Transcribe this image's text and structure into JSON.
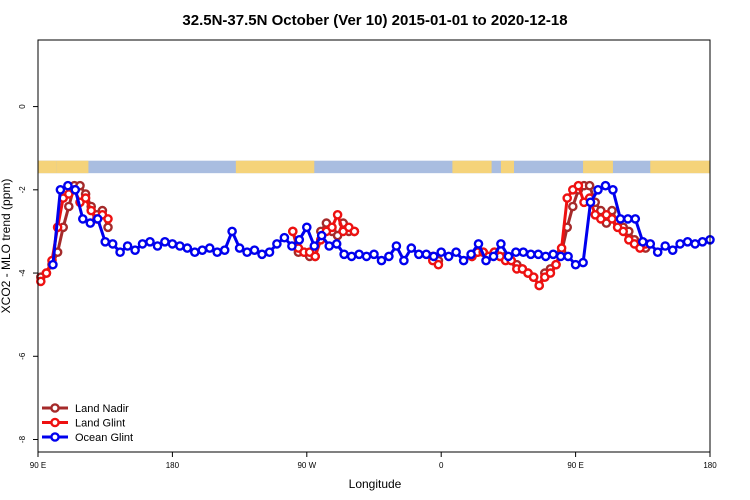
{
  "chart_data": {
    "type": "line",
    "title": "32.5N-37.5N October (Ver 10)   2015-01-01 to 2020-12-18",
    "xlabel": "Longitude",
    "ylabel": "XCO2 - MLO trend (ppm)",
    "xlim": [
      90,
      450
    ],
    "ylim": [
      -8.3,
      1.6
    ],
    "x_ticks": [
      {
        "value": 90,
        "label": "90 E"
      },
      {
        "value": 162,
        "label": "180"
      },
      {
        "value": 234,
        "label": "90 W"
      },
      {
        "value": 306,
        "label": "0"
      },
      {
        "value": 378,
        "label": "90 E"
      },
      {
        "value": 450,
        "label": "180"
      }
    ],
    "y_ticks": [
      {
        "value": 0,
        "label": "0"
      },
      {
        "value": -2,
        "label": "-2"
      },
      {
        "value": -4,
        "label": "-4"
      },
      {
        "value": -6,
        "label": "-6"
      },
      {
        "value": -8,
        "label": "-8"
      }
    ],
    "grid": false,
    "legend_position": "bottom-left",
    "landmask_band": {
      "y_top": -1.3,
      "y_bottom": -1.6,
      "land_color": "#f5d37a",
      "ocean_color": "#a9bde0"
    },
    "series": [
      {
        "name": "Land Nadir",
        "color": "#a52a2a",
        "x": [
          91.5,
          94.5,
          97.5,
          100.5,
          103.5,
          106.5,
          109.5,
          112.5,
          115.5,
          118.5,
          121.5,
          124.5,
          127.5,
          226.5,
          229.5,
          232.5,
          235.5,
          238.5,
          241.5,
          244.5,
          247.5,
          250.5,
          253.5,
          256.5,
          259.5,
          301.5,
          304.5,
          322.5,
          325.5,
          328.5,
          331.5,
          334.5,
          337.5,
          340.5,
          343.5,
          346.5,
          349.5,
          352.5,
          355.5,
          358.5,
          361.5,
          364.5,
          367.5,
          370.5,
          373.5,
          376.5,
          379.5,
          382.5,
          385.5,
          388.5,
          391.5,
          394.5,
          397.5,
          400.5,
          403.5,
          406.5,
          409.5,
          412.5,
          415.5
        ],
        "y": [
          -4.1,
          -4.0,
          -3.8,
          -3.5,
          -2.9,
          -2.4,
          -1.9,
          -1.9,
          -2.1,
          -2.4,
          -2.6,
          -2.5,
          -2.9,
          -3.0,
          -3.5,
          -3.5,
          -3.6,
          -3.6,
          -3.0,
          -2.8,
          -3.0,
          -3.1,
          -2.8,
          -3.0,
          -3.0,
          -3.6,
          -3.7,
          -3.6,
          -3.5,
          -3.5,
          -3.6,
          -3.5,
          -3.6,
          -3.6,
          -3.7,
          -3.8,
          -3.9,
          -4.0,
          -4.1,
          -4.3,
          -4.0,
          -3.9,
          -3.8,
          -3.5,
          -2.9,
          -2.4,
          -2.0,
          -1.9,
          -1.9,
          -2.3,
          -2.5,
          -2.8,
          -2.5,
          -2.8,
          -2.9,
          -3.0,
          -3.2,
          -3.3,
          -3.4
        ]
      },
      {
        "name": "Land Glint",
        "color": "#ee1111",
        "x": [
          91.5,
          94.5,
          97.5,
          100.5,
          103.5,
          106.5,
          109.5,
          112.5,
          115.5,
          118.5,
          121.5,
          124.5,
          127.5,
          226.5,
          229.5,
          232.5,
          235.5,
          238.5,
          241.5,
          244.5,
          247.5,
          250.5,
          253.5,
          256.5,
          259.5,
          301.5,
          304.5,
          322.5,
          325.5,
          328.5,
          331.5,
          334.5,
          337.5,
          340.5,
          343.5,
          346.5,
          349.5,
          352.5,
          355.5,
          358.5,
          361.5,
          364.5,
          367.5,
          370.5,
          373.5,
          376.5,
          379.5,
          382.5,
          385.5,
          388.5,
          391.5,
          394.5,
          397.5,
          400.5,
          403.5,
          406.5,
          409.5,
          412.5,
          415.5
        ],
        "y": [
          -4.2,
          -4.0,
          -3.7,
          -2.9,
          -2.2,
          -2.1,
          -2.0,
          -2.3,
          -2.2,
          -2.5,
          -2.7,
          -2.6,
          -2.7,
          -3.0,
          -3.4,
          -3.5,
          -3.5,
          -3.6,
          -3.2,
          -3.0,
          -2.9,
          -2.6,
          -3.0,
          -2.9,
          -3.0,
          -3.7,
          -3.8,
          -3.6,
          -3.5,
          -3.5,
          -3.6,
          -3.5,
          -3.6,
          -3.7,
          -3.7,
          -3.9,
          -3.9,
          -4.0,
          -4.1,
          -4.3,
          -4.1,
          -4.0,
          -3.8,
          -3.4,
          -2.2,
          -2.0,
          -1.9,
          -2.3,
          -2.2,
          -2.6,
          -2.7,
          -2.6,
          -2.7,
          -2.9,
          -3.0,
          -3.2,
          -3.3,
          -3.4,
          -3.3
        ]
      },
      {
        "name": "Ocean Glint",
        "color": "#0000ee",
        "x": [
          98,
          102,
          106,
          110,
          114,
          118,
          122,
          126,
          130,
          134,
          138,
          142,
          146,
          150,
          154,
          158,
          162,
          166,
          170,
          174,
          178,
          182,
          186,
          190,
          194,
          198,
          202,
          206,
          210,
          214,
          218,
          222,
          226,
          230,
          234,
          238,
          242,
          246,
          250,
          254,
          258,
          262,
          266,
          270,
          274,
          278,
          282,
          286,
          290,
          294,
          298,
          302,
          306,
          310,
          314,
          318,
          322,
          326,
          330,
          334,
          338,
          342,
          346,
          350,
          354,
          358,
          362,
          366,
          370,
          374,
          378,
          382,
          386,
          390,
          394,
          398,
          402,
          406,
          410,
          414,
          418,
          422,
          426,
          430,
          434,
          438,
          442,
          446,
          450
        ],
        "y": [
          -3.8,
          -2.0,
          -1.9,
          -2.0,
          -2.7,
          -2.8,
          -2.7,
          -3.25,
          -3.3,
          -3.5,
          -3.35,
          -3.45,
          -3.3,
          -3.25,
          -3.35,
          -3.25,
          -3.3,
          -3.35,
          -3.4,
          -3.5,
          -3.45,
          -3.4,
          -3.5,
          -3.45,
          -3.0,
          -3.4,
          -3.5,
          -3.45,
          -3.55,
          -3.5,
          -3.3,
          -3.15,
          -3.35,
          -3.2,
          -2.9,
          -3.35,
          -3.1,
          -3.35,
          -3.3,
          -3.55,
          -3.6,
          -3.55,
          -3.6,
          -3.55,
          -3.7,
          -3.6,
          -3.35,
          -3.7,
          -3.4,
          -3.55,
          -3.55,
          -3.6,
          -3.5,
          -3.6,
          -3.5,
          -3.7,
          -3.55,
          -3.3,
          -3.7,
          -3.6,
          -3.3,
          -3.6,
          -3.5,
          -3.5,
          -3.55,
          -3.55,
          -3.6,
          -3.55,
          -3.6,
          -3.6,
          -3.8,
          -3.75,
          -2.3,
          -2.0,
          -1.9,
          -2.0,
          -2.7,
          -2.7,
          -2.7,
          -3.25,
          -3.3,
          -3.5,
          -3.35,
          -3.45,
          -3.3,
          -3.25,
          -3.3,
          -3.25,
          -3.2
        ]
      }
    ]
  }
}
